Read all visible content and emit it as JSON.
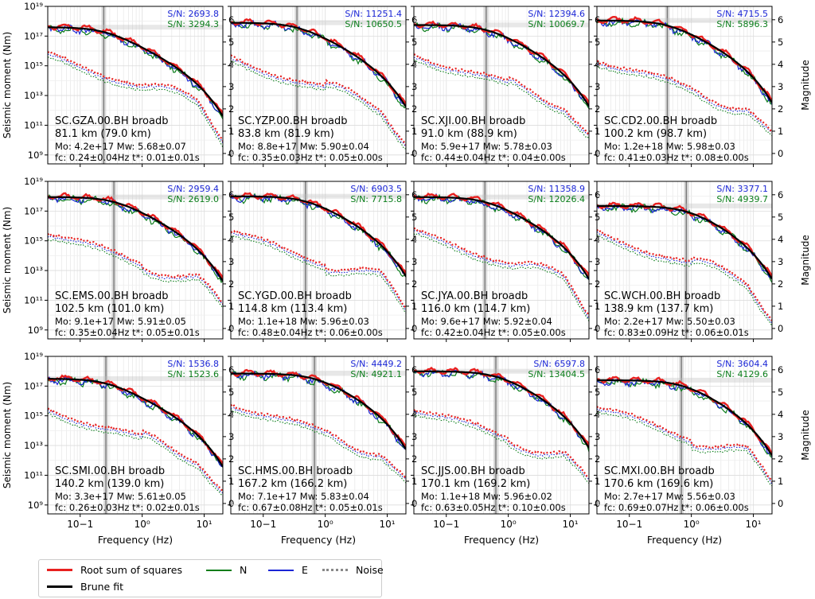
{
  "figure": {
    "ylabel_left": "Seismic moment (Nm)",
    "ylabel_right": "Magnitude",
    "xlabel": "Frequency (Hz)",
    "x_ticks": [
      {
        "v": 0.1,
        "label": "10−1"
      },
      {
        "v": 1,
        "label": "10⁰"
      },
      {
        "v": 10,
        "label": "10¹"
      }
    ],
    "y_ticks": [
      {
        "exp": 9,
        "label": "10⁹"
      },
      {
        "exp": 11,
        "label": "10¹¹"
      },
      {
        "exp": 13,
        "label": "10¹³"
      },
      {
        "exp": 15,
        "label": "10¹⁵"
      },
      {
        "exp": 17,
        "label": "10¹⁷"
      },
      {
        "exp": 19,
        "label": "10¹⁹"
      }
    ],
    "mag_ticks": [
      "0",
      "1",
      "2",
      "3",
      "4",
      "5",
      "6"
    ],
    "colors": {
      "rss": "#e8201f",
      "n": "#0a7d1a",
      "e": "#1b26d6",
      "noise": "#888888",
      "brune": "#000000",
      "sn_e": "#1b26d6",
      "sn_n": "#0a7d1a"
    }
  },
  "legend": {
    "rss": "Root sum of squares",
    "n": "N",
    "e": "E",
    "noise": "Noise",
    "brune": "Brune fit"
  },
  "chart_data": [
    {
      "type": "line",
      "station": "SC.GZA.00.BH broadb",
      "distance": "81.1 km (79.0 km)",
      "mo": "Mo: 4.2e+17 Mw: 5.68±0.07",
      "fc_text": "fc: 0.24±0.04Hz t*: 0.01±0.01s",
      "sn_e": "S/N: 2693.8",
      "sn_n": "S/N: 3294.3",
      "fc": 0.24,
      "plateau_log": 17.6,
      "noise_log": 15.7
    },
    {
      "type": "line",
      "station": "SC.YZP.00.BH broadb",
      "distance": "83.8 km (81.9 km)",
      "mo": "Mo: 8.8e+17 Mw: 5.90±0.04",
      "fc_text": "fc: 0.35±0.03Hz t*: 0.05±0.00s",
      "sn_e": "S/N: 11251.4",
      "sn_n": "S/N: 10650.5",
      "fc": 0.35,
      "plateau_log": 17.9,
      "noise_log": 15.5
    },
    {
      "type": "line",
      "station": "SC.XJI.00.BH broadb",
      "distance": "91.0 km (88.9 km)",
      "mo": "Mo: 5.9e+17 Mw: 5.78±0.03",
      "fc_text": "fc: 0.44±0.04Hz t*: 0.04±0.00s",
      "sn_e": "S/N: 12394.6",
      "sn_n": "S/N: 10069.7",
      "fc": 0.44,
      "plateau_log": 17.75,
      "noise_log": 15.8
    },
    {
      "type": "line",
      "station": "SC.CD2.00.BH broadb",
      "distance": "100.2 km (98.7 km)",
      "mo": "Mo: 1.2e+18 Mw: 5.98±0.03",
      "fc_text": "fc: 0.41±0.03Hz t*: 0.08±0.00s",
      "sn_e": "S/N: 4715.5",
      "sn_n": "S/N: 5896.3",
      "fc": 0.41,
      "plateau_log": 18.05,
      "noise_log": 15.5
    },
    {
      "type": "line",
      "station": "SC.EMS.00.BH broadb",
      "distance": "102.5 km (101.0 km)",
      "mo": "Mo: 9.1e+17 Mw: 5.91±0.05",
      "fc_text": "fc: 0.35±0.04Hz t*: 0.05±0.01s",
      "sn_e": "S/N: 2959.4",
      "sn_n": "S/N: 2619.0",
      "fc": 0.35,
      "plateau_log": 17.95,
      "noise_log": 15.6
    },
    {
      "type": "line",
      "station": "SC.YGD.00.BH broadb",
      "distance": "114.8 km (113.4 km)",
      "mo": "Mo: 1.1e+18 Mw: 5.96±0.03",
      "fc_text": "fc: 0.48±0.04Hz t*: 0.06±0.00s",
      "sn_e": "S/N: 6903.5",
      "sn_n": "S/N: 7715.8",
      "fc": 0.48,
      "plateau_log": 18.0,
      "noise_log": 15.6
    },
    {
      "type": "line",
      "station": "SC.JYA.00.BH broadb",
      "distance": "116.0 km (114.7 km)",
      "mo": "Mo: 9.6e+17 Mw: 5.92±0.04",
      "fc_text": "fc: 0.42±0.04Hz t*: 0.05±0.00s",
      "sn_e": "S/N: 11358.9",
      "sn_n": "S/N: 12026.4",
      "fc": 0.42,
      "plateau_log": 17.95,
      "noise_log": 15.6
    },
    {
      "type": "line",
      "station": "SC.WCH.00.BH broadb",
      "distance": "138.9 km (137.7 km)",
      "mo": "Mo: 2.2e+17 Mw: 5.50±0.03",
      "fc_text": "fc: 0.83±0.09Hz t*: 0.06±0.01s",
      "sn_e": "S/N: 3377.1",
      "sn_n": "S/N: 4939.7",
      "fc": 0.83,
      "plateau_log": 17.35,
      "noise_log": 15.5
    },
    {
      "type": "line",
      "station": "SC.SMI.00.BH broadb",
      "distance": "140.2 km (139.0 km)",
      "mo": "Mo: 3.3e+17 Mw: 5.61±0.05",
      "fc_text": "fc: 0.26±0.03Hz t*: 0.02±0.01s",
      "sn_e": "S/N: 1536.8",
      "sn_n": "S/N: 1523.6",
      "fc": 0.26,
      "plateau_log": 17.5,
      "noise_log": 15.5
    },
    {
      "type": "line",
      "station": "SC.HMS.00.BH broadb",
      "distance": "167.2 km (166.2 km)",
      "mo": "Mo: 7.1e+17 Mw: 5.83±0.04",
      "fc_text": "fc: 0.67±0.08Hz t*: 0.05±0.01s",
      "sn_e": "S/N: 4449.2",
      "sn_n": "S/N: 4921.1",
      "fc": 0.67,
      "plateau_log": 17.85,
      "noise_log": 15.9
    },
    {
      "type": "line",
      "station": "SC.JJS.00.BH broadb",
      "distance": "170.1 km (169.2 km)",
      "mo": "Mo: 1.1e+18 Mw: 5.96±0.02",
      "fc_text": "fc: 0.63±0.05Hz t*: 0.10±0.00s",
      "sn_e": "S/N: 6597.8",
      "sn_n": "S/N: 13404.5",
      "fc": 0.63,
      "plateau_log": 18.0,
      "noise_log": 15.6
    },
    {
      "type": "line",
      "station": "SC.MXI.00.BH broadb",
      "distance": "170.6 km (169.6 km)",
      "mo": "Mo: 2.7e+17 Mw: 5.56±0.03",
      "fc_text": "fc: 0.69±0.07Hz t*: 0.06±0.00s",
      "sn_e": "S/N: 3604.4",
      "sn_n": "S/N: 4129.6",
      "fc": 0.69,
      "plateau_log": 17.4,
      "noise_log": 15.6
    }
  ]
}
